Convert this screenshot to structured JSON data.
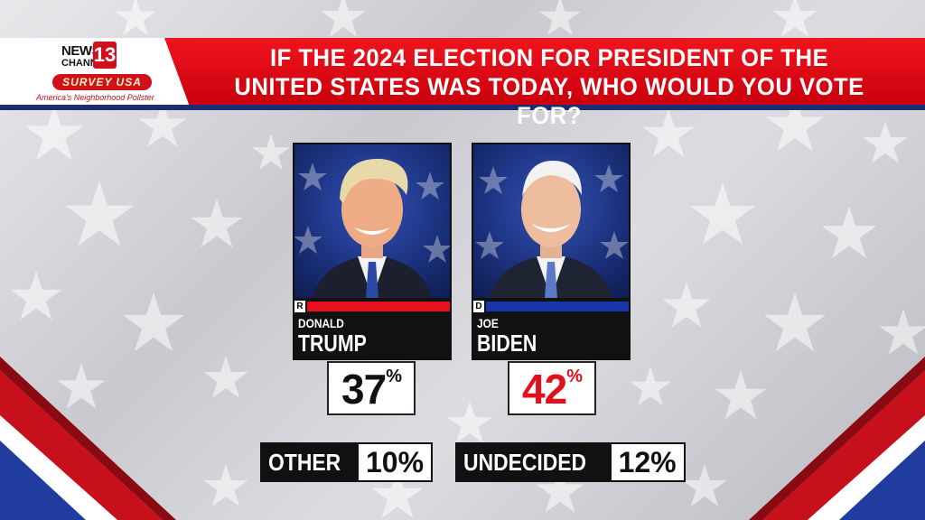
{
  "header": {
    "title_line1": "IF THE 2024 ELECTION FOR PRESIDENT OF THE",
    "title_line2": "UNITED STATES WAS TODAY, WHO WOULD YOU VOTE FOR?"
  },
  "logo": {
    "news": "NEWS",
    "channel": "CHANNEL",
    "number": "13",
    "survey": "SURVEY USA",
    "tagline": "America's Neighborhood Pollster"
  },
  "candidates": [
    {
      "party": "R",
      "first": "DONALD",
      "last": "TRUMP",
      "percent": "37",
      "pct_sign": "%",
      "party_color": "#e8101c",
      "pct_color": "#111111"
    },
    {
      "party": "D",
      "first": "JOE",
      "last": "BIDEN",
      "percent": "42",
      "pct_sign": "%",
      "party_color": "#1736a8",
      "pct_color": "#e0101c"
    }
  ],
  "other": {
    "label": "OTHER",
    "value": "10%"
  },
  "undecided": {
    "label": "UNDECIDED",
    "value": "12%"
  },
  "colors": {
    "red": "#e8101c",
    "navy": "#1b2e73",
    "blue": "#1736a8"
  }
}
